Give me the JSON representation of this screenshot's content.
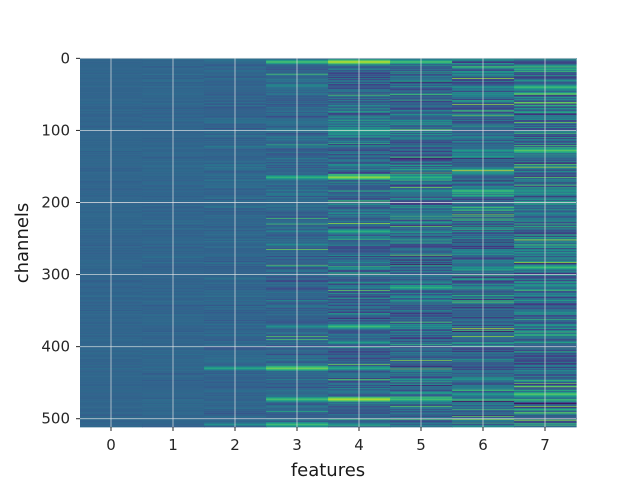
{
  "chart_data": {
    "type": "heatmap",
    "title": "",
    "xlabel": "features",
    "ylabel": "channels",
    "x_ticks": [
      0,
      1,
      2,
      3,
      4,
      5,
      6,
      7
    ],
    "y_ticks": [
      0,
      100,
      200,
      300,
      400,
      500
    ],
    "xlim": [
      -0.5,
      7.5
    ],
    "ylim": [
      511.5,
      -0.5
    ],
    "n_features": 8,
    "n_channels": 512,
    "y_axis_inverted": true,
    "grid": true,
    "colormap": "viridis",
    "colorbar": false
  }
}
